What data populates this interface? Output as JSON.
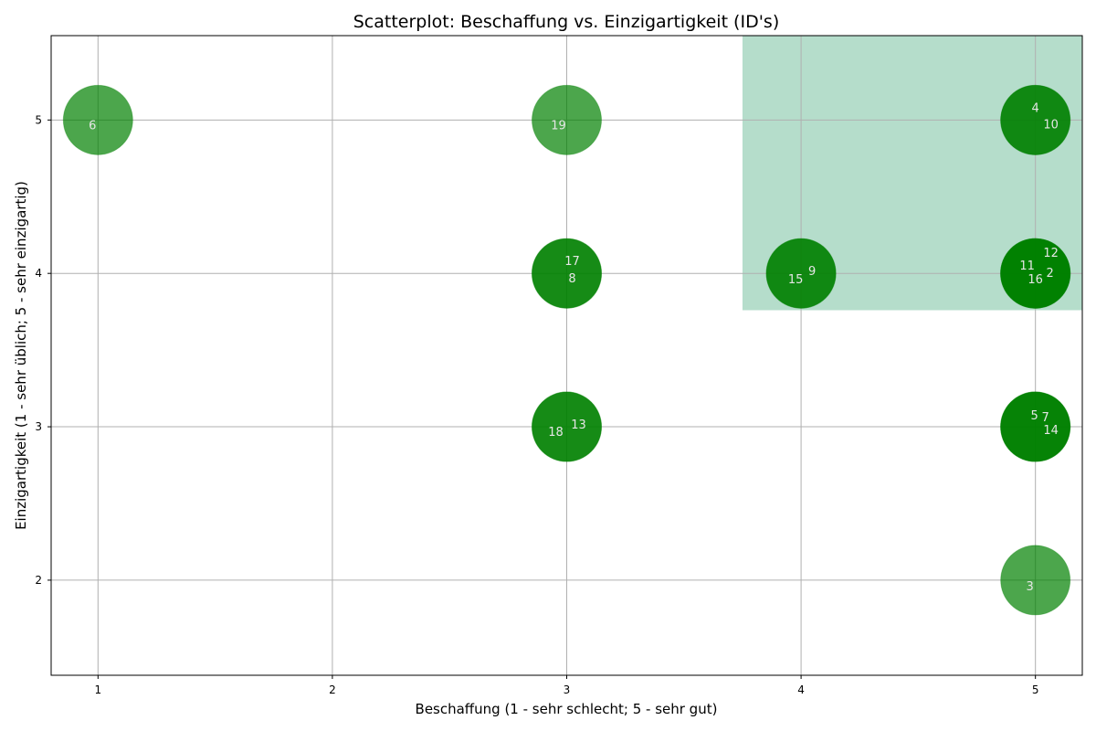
{
  "chart_data": {
    "type": "scatter",
    "title": "Scatterplot: Beschaffung vs. Einzigartigkeit (ID's)",
    "xlabel": "Beschaffung (1 - sehr schlecht; 5 - sehr gut)",
    "ylabel": "Einzigartigkeit (1 - sehr üblich; 5 - sehr einzigartig)",
    "xlim": [
      0.8,
      5.2
    ],
    "ylim": [
      1.38,
      5.55
    ],
    "xticks": [
      "1",
      "2",
      "3",
      "4",
      "5"
    ],
    "yticks": [
      "2",
      "3",
      "4",
      "5"
    ],
    "grid": true,
    "highlight_region": {
      "x": [
        3.75,
        5.2
      ],
      "y": [
        3.76,
        5.55
      ],
      "color": "#b5ddcb"
    },
    "marker_color": "#1a9a1a",
    "points": [
      {
        "id": "2",
        "x": 5,
        "y": 4
      },
      {
        "id": "3",
        "x": 5,
        "y": 2
      },
      {
        "id": "4",
        "x": 5,
        "y": 5
      },
      {
        "id": "5",
        "x": 5,
        "y": 3
      },
      {
        "id": "6",
        "x": 1,
        "y": 5
      },
      {
        "id": "7",
        "x": 5,
        "y": 3
      },
      {
        "id": "8",
        "x": 3,
        "y": 4
      },
      {
        "id": "9",
        "x": 4,
        "y": 4
      },
      {
        "id": "10",
        "x": 5,
        "y": 5
      },
      {
        "id": "11",
        "x": 5,
        "y": 4
      },
      {
        "id": "12",
        "x": 5,
        "y": 4
      },
      {
        "id": "13",
        "x": 3,
        "y": 3
      },
      {
        "id": "14",
        "x": 5,
        "y": 3
      },
      {
        "id": "15",
        "x": 4,
        "y": 4
      },
      {
        "id": "16",
        "x": 5,
        "y": 4
      },
      {
        "id": "17",
        "x": 3,
        "y": 4
      },
      {
        "id": "18",
        "x": 3,
        "y": 3
      },
      {
        "id": "19",
        "x": 3,
        "y": 5
      }
    ]
  }
}
